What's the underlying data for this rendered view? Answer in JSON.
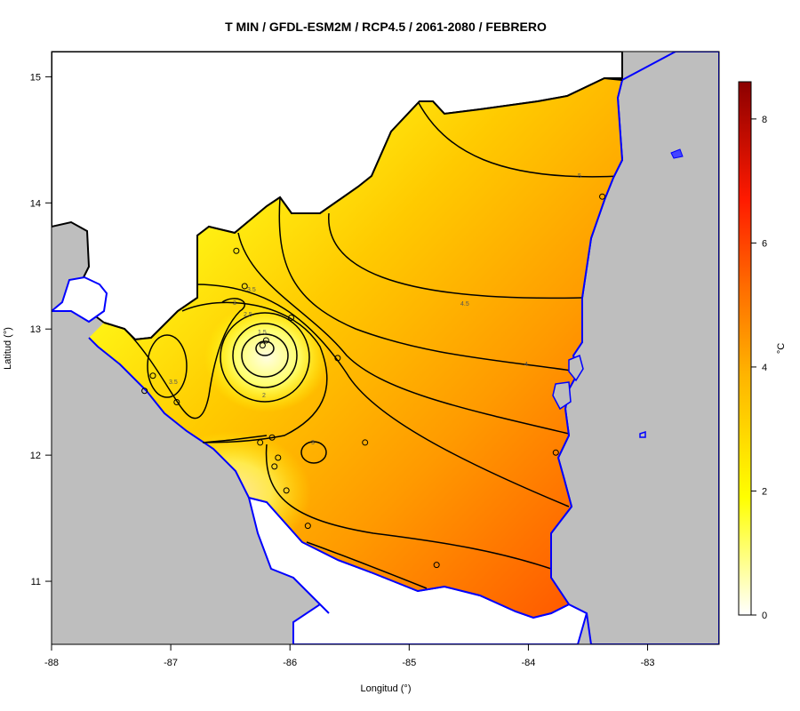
{
  "title": "T MIN / GFDL-ESM2M / RCP4.5 / 2061-2080 / FEBRERO",
  "xlabel": "Longitud (°)",
  "ylabel": "Latitud (°)",
  "colorbar": {
    "label": "°C",
    "min": 0,
    "max": 8.6,
    "ticks": [
      "0",
      "2",
      "4",
      "6",
      "8"
    ],
    "colors": [
      "#ffffff",
      "#ffff00",
      "#ffc000",
      "#ff8000",
      "#ff2a00",
      "#8b0000"
    ]
  },
  "map": {
    "lon_range": [
      -88,
      -82.4
    ],
    "lat_range": [
      10.5,
      15.2
    ],
    "x_ticks": [
      "-88",
      "-87",
      "-86",
      "-85",
      "-84",
      "-83"
    ],
    "y_ticks": [
      "11",
      "12",
      "13",
      "14",
      "15"
    ],
    "background_color": "#bebebe",
    "coast_color": "#0000ff"
  },
  "contour_labels": [
    "1.5",
    "2",
    "2.5",
    "3",
    "3",
    "3.5",
    "3.5",
    "4",
    "4.5",
    "5"
  ],
  "stations": [
    {
      "lon": -86.45,
      "lat": 13.62
    },
    {
      "lon": -86.38,
      "lat": 13.34
    },
    {
      "lon": -86.2,
      "lat": 12.91
    },
    {
      "lon": -86.23,
      "lat": 12.87
    },
    {
      "lon": -85.99,
      "lat": 13.09
    },
    {
      "lon": -85.6,
      "lat": 12.77
    },
    {
      "lon": -87.15,
      "lat": 12.63
    },
    {
      "lon": -86.95,
      "lat": 12.42
    },
    {
      "lon": -87.22,
      "lat": 12.51
    },
    {
      "lon": -86.25,
      "lat": 12.1
    },
    {
      "lon": -86.15,
      "lat": 12.14
    },
    {
      "lon": -86.1,
      "lat": 11.98
    },
    {
      "lon": -86.13,
      "lat": 11.91
    },
    {
      "lon": -86.03,
      "lat": 11.72
    },
    {
      "lon": -85.85,
      "lat": 11.44
    },
    {
      "lon": -85.37,
      "lat": 12.1
    },
    {
      "lon": -84.77,
      "lat": 11.13
    },
    {
      "lon": -83.77,
      "lat": 12.02
    },
    {
      "lon": -83.38,
      "lat": 14.05
    }
  ]
}
